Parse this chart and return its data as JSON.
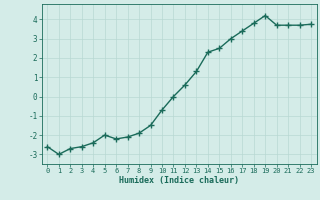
{
  "x": [
    0,
    1,
    2,
    3,
    4,
    5,
    6,
    7,
    8,
    9,
    10,
    11,
    12,
    13,
    14,
    15,
    16,
    17,
    18,
    19,
    20,
    21,
    22,
    23
  ],
  "y": [
    -2.6,
    -3.0,
    -2.7,
    -2.6,
    -2.4,
    -2.0,
    -2.2,
    -2.1,
    -1.9,
    -1.5,
    -0.7,
    0.0,
    0.6,
    1.3,
    2.3,
    2.5,
    3.0,
    3.4,
    3.8,
    4.2,
    3.7,
    3.7,
    3.7,
    3.75
  ],
  "xlabel": "Humidex (Indice chaleur)",
  "ylim": [
    -3.5,
    4.8
  ],
  "xlim": [
    -0.5,
    23.5
  ],
  "yticks": [
    -3,
    -2,
    -1,
    0,
    1,
    2,
    3,
    4
  ],
  "xticks": [
    0,
    1,
    2,
    3,
    4,
    5,
    6,
    7,
    8,
    9,
    10,
    11,
    12,
    13,
    14,
    15,
    16,
    17,
    18,
    19,
    20,
    21,
    22,
    23
  ],
  "line_color": "#1a6b5a",
  "marker": "+",
  "marker_size": 4,
  "bg_color": "#d4ece8",
  "grid_color": "#b8d8d3",
  "axis_color": "#1a6b5a",
  "tick_color": "#1a6b5a",
  "label_color": "#1a6b5a",
  "line_width": 1.0,
  "font_family": "monospace",
  "tick_fontsize": 5.0,
  "xlabel_fontsize": 6.0
}
